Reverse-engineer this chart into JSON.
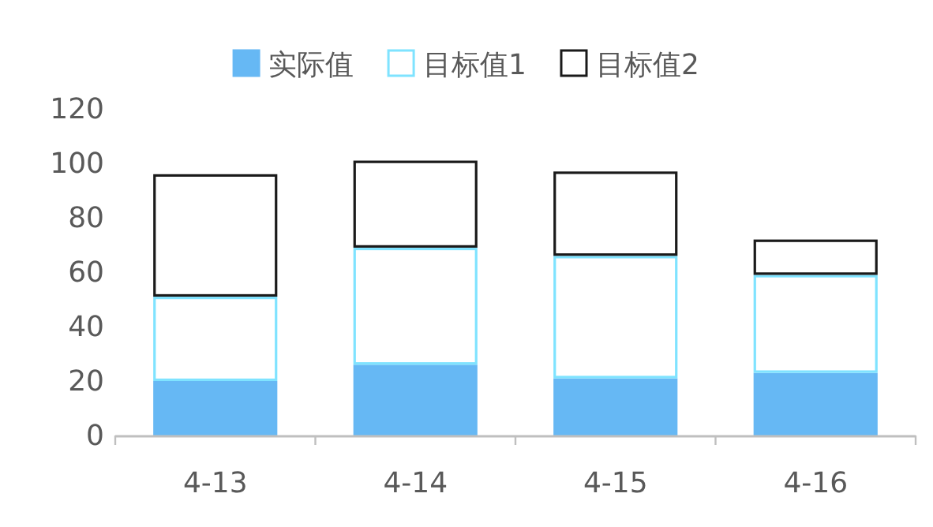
{
  "chart_data": {
    "type": "bar",
    "stacked": true,
    "categories": [
      "4-13",
      "4-14",
      "4-15",
      "4-16"
    ],
    "series": [
      {
        "name": "实际值",
        "color": "#66b8f4",
        "values": [
          20,
          26,
          21,
          23
        ]
      },
      {
        "name": "目标值1",
        "color": "#7fe3ff",
        "values": [
          31,
          43,
          45,
          36
        ]
      },
      {
        "name": "目标值2",
        "color": "#1a1a1a",
        "values": [
          45,
          32,
          31,
          13
        ]
      }
    ],
    "ylim": [
      0,
      120
    ],
    "yticks": [
      0,
      20,
      40,
      60,
      80,
      100,
      120
    ],
    "legend": "top",
    "grid": false
  }
}
